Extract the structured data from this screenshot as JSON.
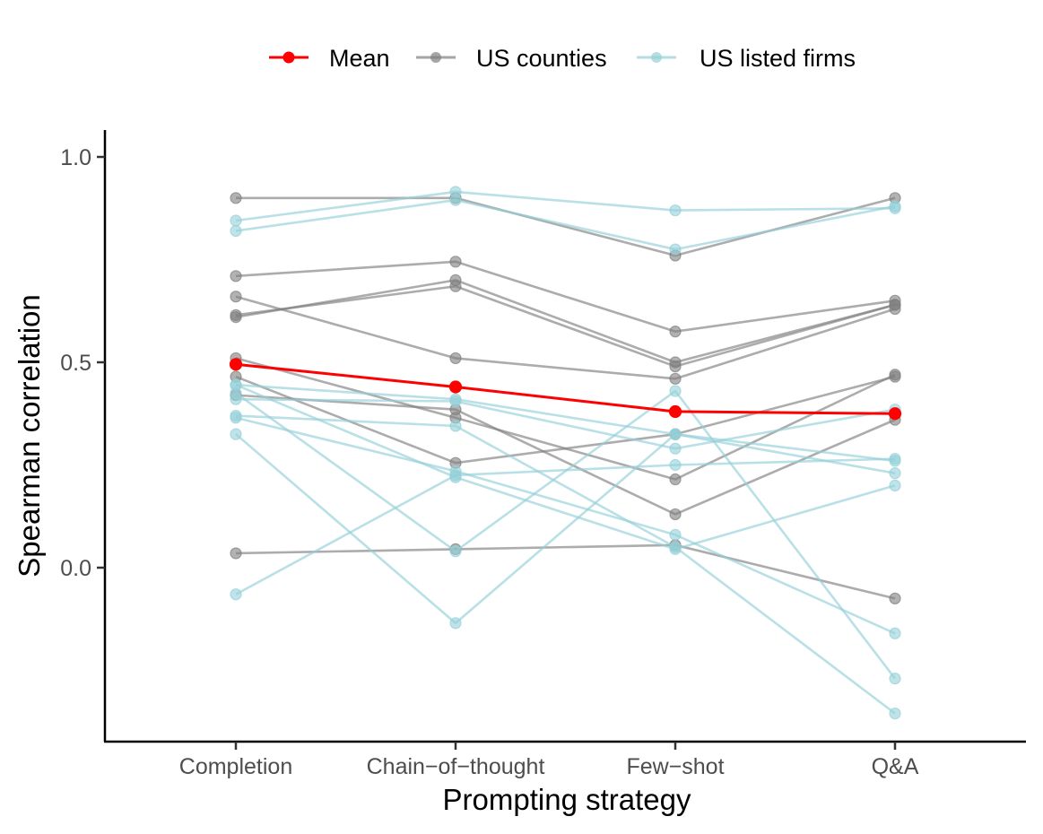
{
  "chart_data": {
    "type": "line",
    "xlabel": "Prompting strategy",
    "ylabel": "Spearman correlation",
    "categories": [
      "Completion",
      "Chain−of−thought",
      "Few−shot",
      "Q&A"
    ],
    "ylim": [
      -0.42,
      1.06
    ],
    "yticks": [
      0.0,
      0.5,
      1.0
    ],
    "ytick_labels": [
      "0.0",
      "0.5",
      "1.0"
    ],
    "grid": false,
    "legend_position": "top",
    "legend": [
      {
        "name": "Mean",
        "color": "#ff0000"
      },
      {
        "name": "US counties",
        "color": "#7f7f7f"
      },
      {
        "name": "US listed firms",
        "color": "#94d0d8"
      }
    ],
    "series": [
      {
        "group": "US counties",
        "name": "county-1",
        "values": [
          0.9,
          0.9,
          0.76,
          0.9
        ]
      },
      {
        "group": "US counties",
        "name": "county-2",
        "values": [
          0.71,
          0.745,
          0.575,
          0.65
        ]
      },
      {
        "group": "US counties",
        "name": "county-3",
        "values": [
          0.61,
          0.7,
          0.5,
          0.64
        ]
      },
      {
        "group": "US counties",
        "name": "county-4",
        "values": [
          0.66,
          0.51,
          0.46,
          0.63
        ]
      },
      {
        "group": "US counties",
        "name": "county-5",
        "values": [
          0.615,
          0.685,
          0.49,
          0.64
        ]
      },
      {
        "group": "US counties",
        "name": "county-6",
        "values": [
          0.51,
          0.365,
          0.215,
          0.47
        ]
      },
      {
        "group": "US counties",
        "name": "county-7",
        "values": [
          0.465,
          0.255,
          0.325,
          0.465
        ]
      },
      {
        "group": "US counties",
        "name": "county-8",
        "values": [
          0.42,
          0.385,
          0.13,
          0.36
        ]
      },
      {
        "group": "US counties",
        "name": "county-9",
        "values": [
          0.035,
          0.045,
          0.055,
          -0.075
        ]
      },
      {
        "group": "US listed firms",
        "name": "firm-1",
        "values": [
          0.845,
          0.915,
          0.87,
          0.875
        ]
      },
      {
        "group": "US listed firms",
        "name": "firm-2",
        "values": [
          0.82,
          0.895,
          0.775,
          0.88
        ]
      },
      {
        "group": "US listed firms",
        "name": "firm-3",
        "values": [
          0.445,
          0.41,
          0.325,
          0.23
        ]
      },
      {
        "group": "US listed firms",
        "name": "firm-4",
        "values": [
          0.425,
          0.04,
          0.43,
          -0.27
        ]
      },
      {
        "group": "US listed firms",
        "name": "firm-5",
        "values": [
          0.41,
          0.405,
          0.29,
          0.385
        ]
      },
      {
        "group": "US listed firms",
        "name": "firm-6",
        "values": [
          0.37,
          0.345,
          0.05,
          -0.355
        ]
      },
      {
        "group": "US listed firms",
        "name": "firm-7",
        "values": [
          0.365,
          0.235,
          0.08,
          -0.16
        ]
      },
      {
        "group": "US listed firms",
        "name": "firm-8",
        "values": [
          0.325,
          -0.135,
          0.325,
          0.26
        ]
      },
      {
        "group": "US listed firms",
        "name": "firm-9",
        "values": [
          -0.065,
          0.225,
          0.25,
          0.265
        ]
      },
      {
        "group": "US listed firms",
        "name": "firm-10",
        "values": [
          0.445,
          0.22,
          0.045,
          0.2
        ]
      },
      {
        "group": "Mean",
        "name": "mean",
        "values": [
          0.495,
          0.44,
          0.38,
          0.375
        ]
      }
    ]
  }
}
